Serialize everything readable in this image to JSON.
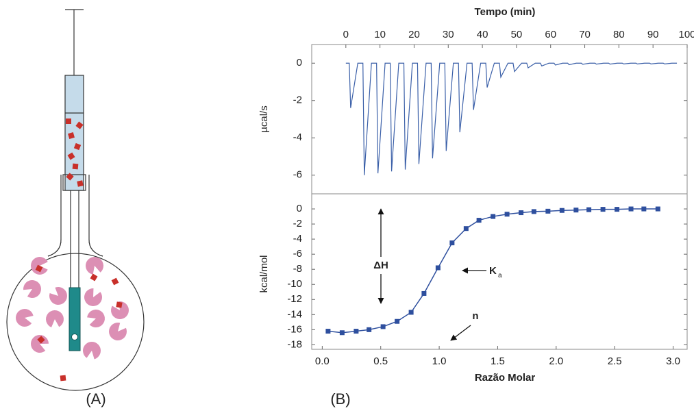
{
  "panels": [
    "(A)",
    "(B)"
  ],
  "chart_data": [
    {
      "type": "line",
      "x_label": "Tempo (min)",
      "y_label": "µcal/s",
      "xlim": [
        -10,
        100
      ],
      "xticks": [
        0,
        10,
        20,
        30,
        40,
        50,
        60,
        70,
        80,
        90,
        100
      ],
      "ylim": [
        -7,
        1
      ],
      "yticks": [
        0,
        -2,
        -4,
        -6
      ],
      "x": [
        0,
        1,
        1.4,
        3.5,
        5,
        5.4,
        7.5,
        9,
        9.4,
        11.5,
        13,
        13.4,
        15.5,
        17,
        17.4,
        19.5,
        21,
        21.4,
        23.5,
        25,
        25.4,
        27.5,
        29,
        29.4,
        31.5,
        33,
        33.4,
        35.5,
        37,
        37.4,
        39.5,
        41,
        41.4,
        43.5,
        45,
        45.4,
        47.5,
        49,
        49.4,
        51.5,
        53,
        53.4,
        55.5,
        57,
        57.4,
        59.5,
        61,
        61.4,
        63.5,
        65,
        65.4,
        67.5,
        69,
        69.4,
        71.5,
        73,
        73.4,
        75.5,
        77,
        77.4,
        79.5,
        81,
        81.4,
        83.5,
        85,
        85.4,
        87.5,
        89,
        89.4,
        91.5,
        93,
        93.4,
        95.5,
        97
      ],
      "series": [
        {
          "color": "#3a5fa8",
          "values": [
            0,
            0,
            -2.4,
            0,
            0,
            -6.0,
            0,
            0,
            -5.9,
            0,
            0,
            -5.8,
            0,
            0,
            -5.7,
            0,
            0,
            -5.4,
            0,
            0,
            -5.1,
            0,
            0,
            -4.7,
            0,
            0,
            -3.7,
            0,
            0,
            -2.5,
            0,
            0,
            -1.3,
            0,
            0,
            -0.75,
            0,
            0,
            -0.45,
            0,
            0,
            -0.25,
            0,
            0,
            -0.15,
            0,
            0,
            -0.1,
            0,
            0,
            -0.08,
            0,
            0,
            -0.06,
            0,
            0,
            -0.05,
            0,
            0,
            -0.05,
            0,
            0,
            -0.04,
            0,
            0,
            -0.04,
            0,
            0,
            -0.04,
            0,
            0,
            -0.04,
            0,
            0
          ]
        }
      ]
    },
    {
      "type": "scatter",
      "x_label": "Razão Molar",
      "y_label": "kcal/mol",
      "color": "#2e4f9e",
      "line": true,
      "xlim": [
        -0.09,
        3.12
      ],
      "xticks": [
        {
          "value": 0,
          "label": "0.0"
        },
        0.5,
        {
          "value": 1,
          "label": "1.0"
        },
        1.5,
        {
          "value": 2,
          "label": "2.0"
        },
        2.5,
        {
          "value": 3,
          "label": "3.0"
        }
      ],
      "ylim": [
        -18.6,
        2
      ],
      "yticks": [
        0,
        -2,
        -4,
        -6,
        -8,
        -10,
        -12,
        -14,
        -16,
        -18
      ],
      "x": [
        0.05,
        0.17,
        0.29,
        0.4,
        0.52,
        0.64,
        0.76,
        0.87,
        0.99,
        1.11,
        1.23,
        1.34,
        1.46,
        1.58,
        1.7,
        1.81,
        1.93,
        2.05,
        2.17,
        2.28,
        2.4,
        2.52,
        2.64,
        2.75,
        2.87
      ],
      "values": [
        -16.2,
        -16.4,
        -16.2,
        -16.0,
        -15.6,
        -14.9,
        -13.7,
        -11.2,
        -7.8,
        -4.5,
        -2.6,
        -1.5,
        -1.0,
        -0.7,
        -0.5,
        -0.35,
        -0.3,
        -0.2,
        -0.15,
        -0.1,
        -0.05,
        -0.05,
        0,
        0,
        0
      ],
      "annotations": [
        {
          "text": "ΔH"
        },
        {
          "text": "K",
          "sub": "a"
        },
        {
          "text": "n"
        }
      ]
    }
  ]
}
